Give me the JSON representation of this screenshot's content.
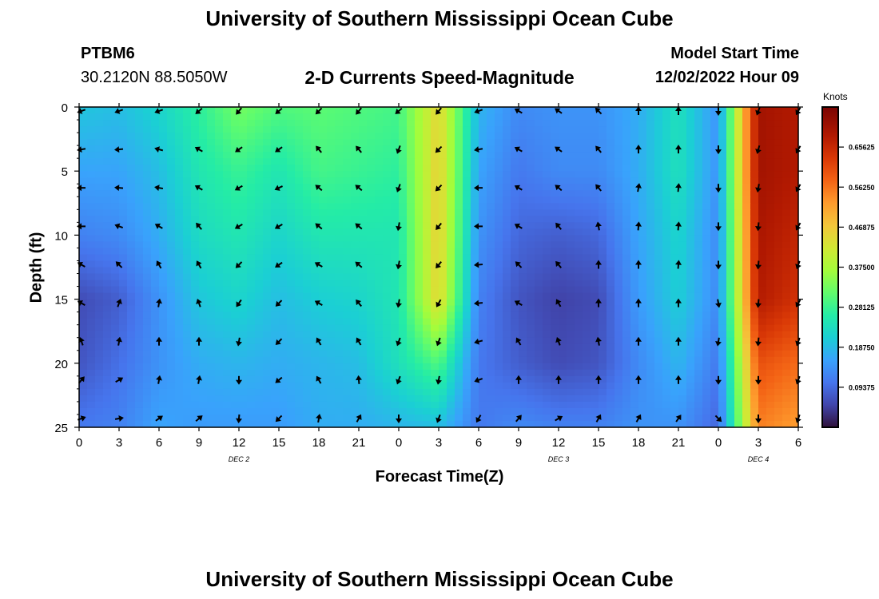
{
  "header": {
    "title": "University of Southern Mississippi Ocean Cube",
    "station": "PTBM6",
    "coords": "30.2120N  88.5050W",
    "subtitle": "2-D Currents Speed-Magnitude",
    "model_label": "Model Start Time",
    "model_time": "12/02/2022 Hour 09"
  },
  "footer": {
    "title": "University of Southern Mississippi Ocean Cube"
  },
  "chart_data": {
    "type": "heatmap",
    "title": "2-D Currents Speed-Magnitude",
    "xlabel": "Forecast Time(Z)",
    "ylabel": "Depth (ft)",
    "x_tick_labels": [
      "0",
      "3",
      "6",
      "9",
      "12",
      "15",
      "18",
      "21",
      "0",
      "3",
      "6",
      "9",
      "12",
      "15",
      "18",
      "21",
      "0",
      "3",
      "6"
    ],
    "x_range_hours": [
      0,
      54
    ],
    "date_labels": [
      {
        "label": "DEC 2",
        "at_hour": 12
      },
      {
        "label": "DEC 3",
        "at_hour": 36
      },
      {
        "label": "DEC 4",
        "at_hour": 51
      }
    ],
    "y_ticks": [
      0,
      5,
      10,
      15,
      20,
      25
    ],
    "ylim": [
      0,
      25
    ],
    "y_inverted": true,
    "colorbar": {
      "unit": "Knots",
      "ticks": [
        "0.65625",
        "0.56250",
        "0.46875",
        "0.37500",
        "0.28125",
        "0.18750",
        "0.09375"
      ],
      "range": [
        0.0,
        0.75
      ]
    },
    "speed_knots": {
      "depths_ft": [
        0,
        5,
        10,
        15,
        20,
        25
      ],
      "hours": [
        0,
        3,
        6,
        9,
        12,
        15,
        18,
        21,
        24,
        27,
        30,
        33,
        36,
        39,
        42,
        45,
        48,
        51,
        54
      ],
      "values": [
        [
          0.2,
          0.19,
          0.22,
          0.27,
          0.33,
          0.3,
          0.31,
          0.3,
          0.29,
          0.45,
          0.18,
          0.13,
          0.14,
          0.14,
          0.17,
          0.24,
          0.14,
          0.7,
          0.68
        ],
        [
          0.16,
          0.16,
          0.19,
          0.25,
          0.28,
          0.25,
          0.29,
          0.28,
          0.27,
          0.46,
          0.16,
          0.11,
          0.13,
          0.13,
          0.17,
          0.24,
          0.14,
          0.7,
          0.68
        ],
        [
          0.12,
          0.13,
          0.17,
          0.23,
          0.25,
          0.22,
          0.25,
          0.25,
          0.25,
          0.46,
          0.14,
          0.09,
          0.08,
          0.09,
          0.16,
          0.22,
          0.13,
          0.69,
          0.66
        ],
        [
          0.06,
          0.08,
          0.14,
          0.2,
          0.22,
          0.19,
          0.21,
          0.22,
          0.25,
          0.45,
          0.12,
          0.07,
          0.05,
          0.06,
          0.15,
          0.21,
          0.13,
          0.68,
          0.64
        ],
        [
          0.07,
          0.1,
          0.14,
          0.17,
          0.18,
          0.17,
          0.18,
          0.19,
          0.24,
          0.3,
          0.11,
          0.08,
          0.06,
          0.07,
          0.13,
          0.18,
          0.11,
          0.6,
          0.57
        ],
        [
          0.11,
          0.12,
          0.16,
          0.15,
          0.15,
          0.15,
          0.17,
          0.17,
          0.18,
          0.19,
          0.11,
          0.13,
          0.12,
          0.12,
          0.14,
          0.14,
          0.09,
          0.55,
          0.52
        ]
      ]
    },
    "current_direction_deg": {
      "depths_ft": [
        0,
        3,
        6,
        9,
        12,
        15,
        18,
        21,
        24
      ],
      "hours": [
        0,
        3,
        6,
        9,
        12,
        15,
        18,
        21,
        24,
        27,
        30,
        33,
        36,
        39,
        42,
        45,
        48,
        51,
        54
      ],
      "values": [
        [
          250,
          250,
          250,
          230,
          220,
          230,
          225,
          220,
          230,
          220,
          250,
          300,
          305,
          315,
          0,
          0,
          180,
          200,
          210
        ],
        [
          260,
          265,
          285,
          300,
          235,
          235,
          320,
          320,
          200,
          225,
          260,
          300,
          305,
          320,
          0,
          0,
          180,
          195,
          210
        ],
        [
          270,
          275,
          280,
          300,
          240,
          245,
          310,
          310,
          200,
          225,
          270,
          300,
          310,
          320,
          10,
          5,
          180,
          190,
          210
        ],
        [
          270,
          290,
          300,
          320,
          240,
          240,
          310,
          310,
          190,
          220,
          270,
          300,
          320,
          350,
          5,
          5,
          180,
          185,
          210
        ],
        [
          300,
          315,
          330,
          330,
          225,
          235,
          300,
          310,
          190,
          220,
          265,
          315,
          320,
          0,
          0,
          5,
          180,
          185,
          200
        ],
        [
          300,
          20,
          10,
          340,
          215,
          225,
          300,
          320,
          190,
          210,
          265,
          300,
          330,
          0,
          0,
          0,
          170,
          185,
          210
        ],
        [
          340,
          10,
          0,
          0,
          190,
          225,
          330,
          330,
          200,
          200,
          255,
          330,
          340,
          350,
          0,
          0,
          190,
          185,
          200
        ],
        [
          40,
          60,
          10,
          10,
          180,
          230,
          330,
          355,
          200,
          190,
          250,
          0,
          0,
          0,
          0,
          0,
          180,
          180,
          200
        ],
        [
          70,
          80,
          55,
          50,
          185,
          225,
          10,
          30,
          180,
          200,
          210,
          40,
          60,
          30,
          30,
          35,
          135,
          180,
          200
        ]
      ]
    }
  }
}
